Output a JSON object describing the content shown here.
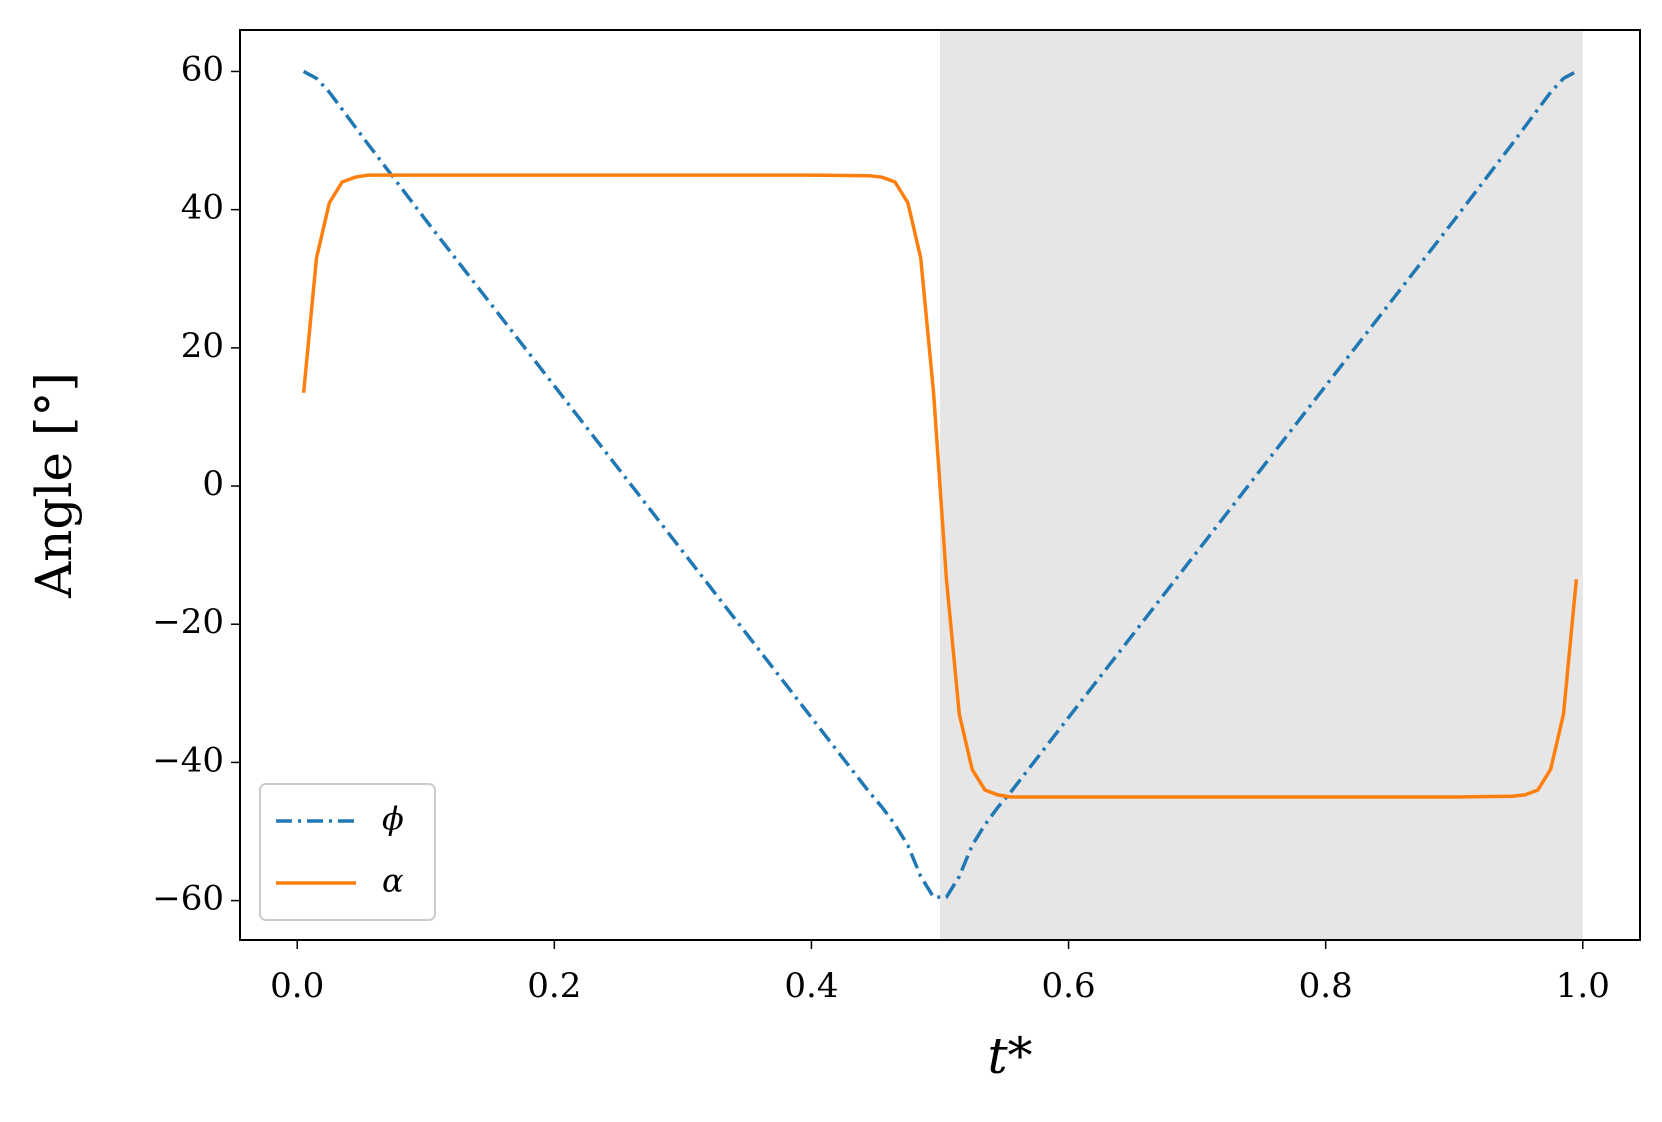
{
  "chart_data": {
    "type": "line",
    "xlabel": "t*",
    "ylabel": "Angle [°]",
    "x": [
      0.005,
      0.015,
      0.025,
      0.035,
      0.045,
      0.055,
      0.1,
      0.15,
      0.2,
      0.25,
      0.3,
      0.35,
      0.4,
      0.445,
      0.455,
      0.465,
      0.475,
      0.485,
      0.495,
      0.505,
      0.515,
      0.525,
      0.535,
      0.545,
      0.555,
      0.6,
      0.65,
      0.7,
      0.75,
      0.8,
      0.85,
      0.9,
      0.945,
      0.955,
      0.965,
      0.975,
      0.985,
      0.995
    ],
    "series": [
      {
        "name": "ϕ",
        "color": "#1f77b4",
        "dash": "dashdot",
        "values": [
          60,
          59,
          57,
          54.5,
          52,
          49.5,
          38.5,
          26.5,
          14.5,
          2.5,
          -9.5,
          -21.5,
          -33.5,
          -44.3,
          -46.5,
          -49,
          -52,
          -56.5,
          -59.5,
          -59.5,
          -56.5,
          -52,
          -49,
          -46.5,
          -44.3,
          -33.5,
          -21.5,
          -9.5,
          2.5,
          14.5,
          26.5,
          38.5,
          49.5,
          52,
          54.5,
          57,
          59,
          60
        ]
      },
      {
        "name": "α",
        "color": "#ff7f0e",
        "dash": "solid",
        "values": [
          13.5,
          33,
          41,
          44,
          44.7,
          45,
          45,
          45,
          45,
          45,
          45,
          45,
          45,
          44.9,
          44.7,
          44,
          41,
          33,
          13.5,
          -13.5,
          -33,
          -41,
          -44,
          -44.7,
          -45,
          -45,
          -45,
          -45,
          -45,
          -45,
          -45,
          -45,
          -44.9,
          -44.7,
          -44,
          -41,
          -33,
          -13.5
        ]
      }
    ],
    "shade": [
      0.5,
      1.0
    ],
    "xlim": [
      -0.0445,
      1.0445
    ],
    "ylim": [
      -65.7,
      66
    ],
    "xticks": [
      {
        "value": 0,
        "label": "0.0"
      },
      0.2,
      0.4,
      0.6,
      0.8,
      {
        "value": 1,
        "label": "1.0"
      }
    ],
    "yticks": [
      {
        "value": -60,
        "label": "−60"
      },
      {
        "value": -40,
        "label": "−40"
      },
      {
        "value": -20,
        "label": "−20"
      },
      0,
      20,
      40,
      60
    ],
    "legend": "lower left",
    "grid": false
  }
}
